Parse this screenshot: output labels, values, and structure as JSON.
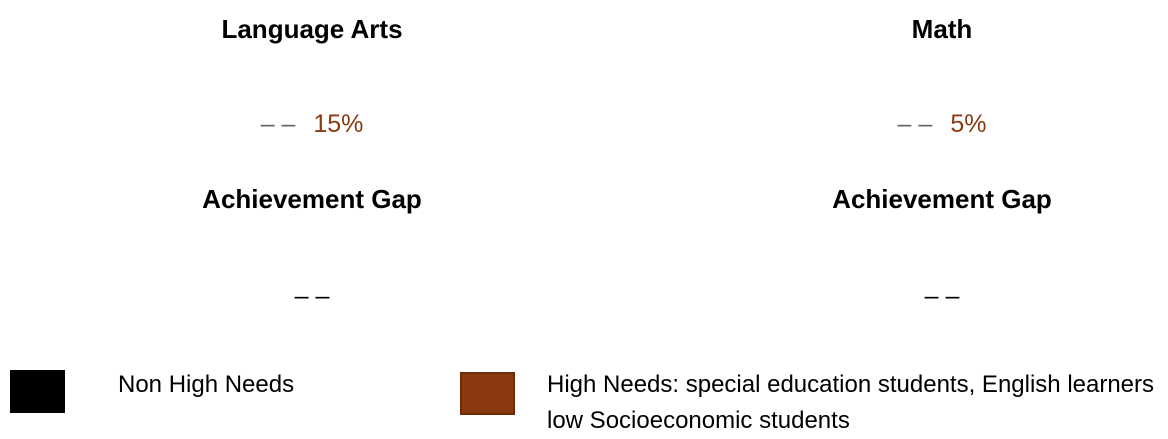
{
  "panels": [
    {
      "title": "Language Arts",
      "dash": "– –",
      "value": "15%",
      "gap_label": "Achievement Gap",
      "gap_value": "– –"
    },
    {
      "title": "Math",
      "dash": "– –",
      "value": "5%",
      "gap_label": "Achievement Gap",
      "gap_value": "– –"
    }
  ],
  "legend": [
    {
      "label": "Non High Needs",
      "color": "#000000"
    },
    {
      "label": "High Needs: special education students, English learners low Socioeconomic students",
      "color": "#8b3a0f"
    }
  ]
}
